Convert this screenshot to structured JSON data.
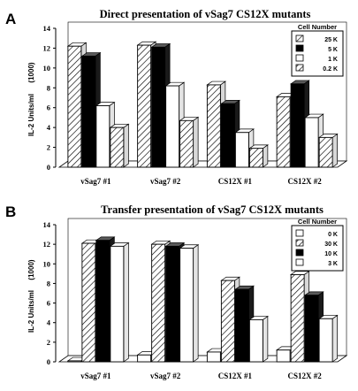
{
  "chart_data": [
    {
      "panel": "A",
      "type": "bar",
      "title": "Direct presentation of vSag7 CS12X mutants",
      "ylabel": "IL-2 Units/ml",
      "ylabel_unit": "(1000)",
      "ylim": [
        0,
        14
      ],
      "yticks": [
        "0",
        "2",
        "4",
        "6",
        "8",
        "10",
        "12",
        "14"
      ],
      "categories": [
        "vSag7 #1",
        "vSag7 #2",
        "CS12X #1",
        "CS12X #2"
      ],
      "legend_title": "Cell Number",
      "legend_position": "top-right",
      "series": [
        {
          "name": "25 K",
          "pattern": "hatch",
          "values": [
            12.2,
            12.3,
            8.3,
            7.1
          ]
        },
        {
          "name": "5 K",
          "pattern": "black",
          "values": [
            11.2,
            12.1,
            6.4,
            8.4
          ]
        },
        {
          "name": "1 K",
          "pattern": "white",
          "values": [
            6.2,
            8.2,
            3.5,
            5.0
          ]
        },
        {
          "name": "0.2 K",
          "pattern": "hatch",
          "values": [
            4.0,
            4.7,
            1.9,
            3.0
          ]
        }
      ]
    },
    {
      "panel": "B",
      "type": "bar",
      "title": "Transfer presentation of vSag7 CS12X mutants",
      "ylabel": "IL-2 Units/ml",
      "ylabel_unit": "(1000)",
      "ylim": [
        0,
        14
      ],
      "yticks": [
        "0",
        "2",
        "4",
        "6",
        "8",
        "10",
        "12",
        "14"
      ],
      "categories": [
        "vSag7 #1",
        "vSag7 #2",
        "CS12X #1",
        "CS12X #2"
      ],
      "legend_title": "Cell Number",
      "legend_position": "top-right",
      "series": [
        {
          "name": "0 K",
          "pattern": "white",
          "values": [
            0.1,
            0.7,
            1.0,
            1.2
          ]
        },
        {
          "name": "30 K",
          "pattern": "hatch",
          "values": [
            12.1,
            12.0,
            8.3,
            8.9
          ]
        },
        {
          "name": "10 K",
          "pattern": "black",
          "values": [
            12.4,
            11.8,
            7.4,
            6.8
          ]
        },
        {
          "name": "3 K",
          "pattern": "white",
          "values": [
            11.8,
            11.6,
            4.3,
            4.4
          ]
        }
      ]
    }
  ]
}
